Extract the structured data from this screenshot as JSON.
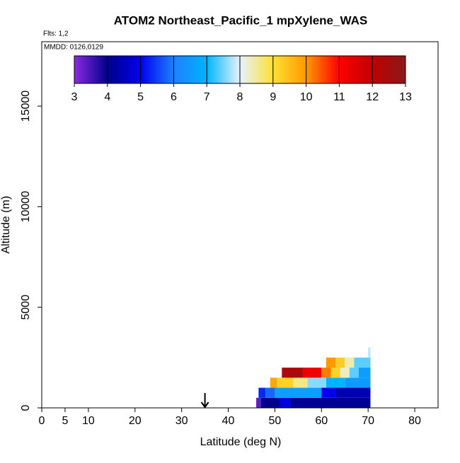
{
  "chart_data": {
    "type": "curtain",
    "title": "ATOM2 Northeast_Pacific_1 mpXylene_WAS",
    "flights": "Flts: 1,2",
    "dates": "MMDD: 0126,0129",
    "x_label": "Latitude (deg N)",
    "y_label": "Altitude (m)",
    "xlim": [
      0,
      85
    ],
    "xticks": [
      0,
      5,
      10,
      20,
      30,
      40,
      50,
      60,
      70,
      80
    ],
    "ylim": [
      0,
      18200
    ],
    "yticks": [
      0,
      5000,
      10000,
      15000
    ],
    "colorbar": {
      "range": [
        3,
        13
      ],
      "ticks": [
        3,
        4,
        5,
        6,
        7,
        8,
        9,
        10,
        11,
        12,
        13
      ],
      "colors": [
        "#8a2be2",
        "#00008b",
        "#0000ee",
        "#1e7fff",
        "#00b4ff",
        "#e6f2ff",
        "#ffe033",
        "#ff9900",
        "#ff0000",
        "#c00000",
        "#8b1a1a"
      ]
    },
    "marker_lat": 35,
    "cells": [
      {
        "lat": [
          46,
          47
        ],
        "alt": [
          0,
          500
        ],
        "value": 3.3
      },
      {
        "lat": [
          47,
          51
        ],
        "alt": [
          0,
          500
        ],
        "value": 4.0
      },
      {
        "lat": [
          51,
          53.5
        ],
        "alt": [
          0,
          500
        ],
        "value": 4.8
      },
      {
        "lat": [
          53.5,
          70.5
        ],
        "alt": [
          0,
          500
        ],
        "value": 4.1
      },
      {
        "lat": [
          46.5,
          48
        ],
        "alt": [
          500,
          1000
        ],
        "value": 5.3
      },
      {
        "lat": [
          48,
          50
        ],
        "alt": [
          500,
          1000
        ],
        "value": 5.8
      },
      {
        "lat": [
          50,
          60
        ],
        "alt": [
          500,
          1000
        ],
        "value": 6.6
      },
      {
        "lat": [
          60,
          63
        ],
        "alt": [
          500,
          1000
        ],
        "value": 5.0
      },
      {
        "lat": [
          63,
          70.5
        ],
        "alt": [
          500,
          1000
        ],
        "value": 4.4
      },
      {
        "lat": [
          49,
          50.5
        ],
        "alt": [
          1000,
          1500
        ],
        "value": 9.8
      },
      {
        "lat": [
          50.5,
          54
        ],
        "alt": [
          1000,
          1500
        ],
        "value": 9.2
      },
      {
        "lat": [
          54,
          57
        ],
        "alt": [
          1000,
          1500
        ],
        "value": 8.6
      },
      {
        "lat": [
          57,
          61
        ],
        "alt": [
          1000,
          1500
        ],
        "value": 7.6
      },
      {
        "lat": [
          61,
          65
        ],
        "alt": [
          1000,
          1500
        ],
        "value": 7.0
      },
      {
        "lat": [
          65,
          70.5
        ],
        "alt": [
          1000,
          1500
        ],
        "value": 6.5
      },
      {
        "lat": [
          51.5,
          56
        ],
        "alt": [
          1500,
          2000
        ],
        "value": 12.4
      },
      {
        "lat": [
          56,
          60
        ],
        "alt": [
          1500,
          2000
        ],
        "value": 11.3
      },
      {
        "lat": [
          60,
          62
        ],
        "alt": [
          1500,
          2000
        ],
        "value": 10.2
      },
      {
        "lat": [
          62,
          64
        ],
        "alt": [
          1500,
          2000
        ],
        "value": 9.2
      },
      {
        "lat": [
          64,
          66
        ],
        "alt": [
          1500,
          2000
        ],
        "value": 8.3
      },
      {
        "lat": [
          66,
          68
        ],
        "alt": [
          1500,
          2000
        ],
        "value": 7.4
      },
      {
        "lat": [
          68,
          70.5
        ],
        "alt": [
          1500,
          2000
        ],
        "value": 6.6
      },
      {
        "lat": [
          61,
          63
        ],
        "alt": [
          2000,
          2500
        ],
        "value": 10.0
      },
      {
        "lat": [
          63,
          65
        ],
        "alt": [
          2000,
          2500
        ],
        "value": 9.3
      },
      {
        "lat": [
          65,
          67
        ],
        "alt": [
          2000,
          2500
        ],
        "value": 8.4
      },
      {
        "lat": [
          67,
          70.5
        ],
        "alt": [
          2000,
          2500
        ],
        "value": 7.4
      },
      {
        "lat": [
          70,
          70.5
        ],
        "alt": [
          2500,
          3000
        ],
        "value": 7.8
      }
    ]
  }
}
